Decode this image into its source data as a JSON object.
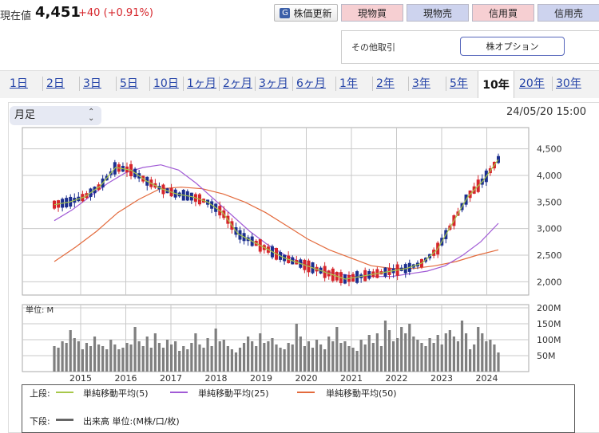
{
  "header": {
    "price_label": "現在値",
    "price": "4,451",
    "change": "+40 (+0.91%)",
    "refresh_label": "株価更新",
    "trade_buttons": [
      "現物買",
      "現物売",
      "信用買",
      "信用売"
    ],
    "other_label": "その他取引",
    "option_button": "株オプション"
  },
  "period_tabs": [
    "1日",
    "2日",
    "3日",
    "5日",
    "10日",
    "1ヶ月",
    "2ヶ月",
    "3ヶ月",
    "6ヶ月",
    "1年",
    "2年",
    "3年",
    "5年",
    "10年",
    "20年",
    "30年"
  ],
  "active_tab": "10年",
  "chart_controls": {
    "interval_select": "月足",
    "timestamp": "24/05/20 15:00"
  },
  "legend": {
    "upper_prefix": "上段:",
    "lower_prefix": "下段:",
    "sma5": "単純移動平均(5)",
    "sma25": "単純移動平均(25)",
    "sma50": "単純移動平均(50)",
    "volume": "出来高 単位:(M株/口/枚)"
  },
  "colors": {
    "up": "#d6262c",
    "down": "#1c2f8f",
    "sma5": "#a7c84a",
    "sma25": "#a15bd6",
    "sma50": "#e36a3c",
    "volume": "#7f7f7f"
  },
  "chart_data": {
    "type": "candlestick",
    "price_axis": {
      "ticks": [
        "2,000",
        "2,500",
        "3,000",
        "3,500",
        "4,000",
        "4,500"
      ],
      "ylim": [
        1750,
        4900
      ]
    },
    "volume_axis": {
      "unit_label": "単位: M",
      "ticks": [
        "50M",
        "100M",
        "150M",
        "200M"
      ],
      "ylim": [
        0,
        210
      ]
    },
    "x_ticks": [
      "2015",
      "2016",
      "2017",
      "2018",
      "2019",
      "2020",
      "2021",
      "2022",
      "2023",
      "2024"
    ],
    "series": [
      {
        "name": "単純移動平均(5)",
        "values": [
          3450,
          3500,
          3600,
          3800,
          4150,
          4100,
          3900,
          3750,
          3650,
          3600,
          3500,
          3300,
          2900,
          2750,
          2600,
          2450,
          2350,
          2250,
          2150,
          2050,
          2100,
          2150,
          2200,
          2250,
          2350,
          2600,
          3100,
          3600,
          3900,
          4300
        ]
      },
      {
        "name": "単純移動平均(25)",
        "values": [
          3150,
          3350,
          3600,
          3850,
          4050,
          4150,
          4200,
          4100,
          3850,
          3550,
          3250,
          2950,
          2700,
          2500,
          2350,
          2200,
          2150,
          2100,
          2100,
          2100,
          2150,
          2200,
          2300,
          2500,
          2750,
          3100
        ]
      },
      {
        "name": "単純移動平均(50)",
        "values": [
          2380,
          2650,
          2950,
          3300,
          3550,
          3750,
          3780,
          3750,
          3650,
          3500,
          3300,
          3050,
          2800,
          2600,
          2450,
          2300,
          2250,
          2250,
          2300,
          2380,
          2500,
          2600
        ]
      },
      {
        "name": "出来高",
        "values": [
          80,
          75,
          95,
          90,
          130,
          105,
          95,
          70,
          90,
          80,
          110,
          85,
          80,
          70,
          100,
          85,
          70,
          75,
          90,
          85,
          140,
          95,
          80,
          110,
          75,
          120,
          90,
          75,
          100,
          85,
          95,
          65,
          80,
          70,
          90,
          120,
          85,
          75,
          105,
          80,
          135,
          95,
          100,
          80,
          70,
          60,
          75,
          90,
          110,
          95,
          80,
          120,
          90,
          95,
          105,
          85,
          75,
          70,
          90,
          85,
          150,
          110,
          80,
          95,
          75,
          100,
          85,
          70,
          110,
          95,
          140,
          90,
          95,
          80,
          75,
          65,
          100,
          85,
          115,
          90,
          120,
          80,
          160,
          130,
          95,
          105,
          140,
          120,
          150,
          110,
          100,
          90,
          80,
          105,
          90,
          115,
          85,
          120,
          130,
          110,
          95,
          160,
          120,
          70,
          85,
          140,
          120,
          95,
          100,
          85,
          60
        ]
      }
    ]
  }
}
